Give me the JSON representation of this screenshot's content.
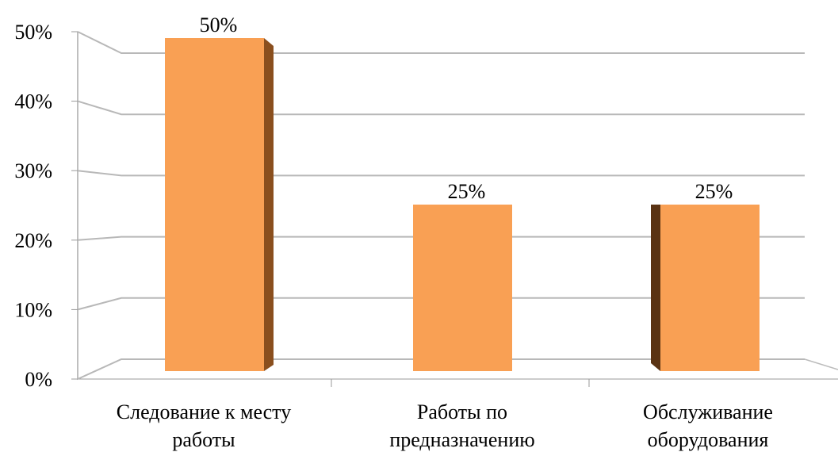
{
  "chart_data": {
    "type": "bar3d",
    "categories": [
      "Следование к месту\nработы",
      "Работы по\nпредназначению",
      "Обслуживание\nоборудования"
    ],
    "values": [
      50,
      25,
      25
    ],
    "value_labels": [
      "50%",
      "25%",
      "25%"
    ],
    "color": "#F9A054",
    "ylim": [
      0,
      50
    ],
    "yticks": [
      {
        "value": 0,
        "label": "0%"
      },
      {
        "value": 10,
        "label": "10%"
      },
      {
        "value": 20,
        "label": "20%"
      },
      {
        "value": 30,
        "label": "30%"
      },
      {
        "value": 40,
        "label": "40%"
      },
      {
        "value": 50,
        "label": "50%"
      }
    ],
    "grid": true
  }
}
